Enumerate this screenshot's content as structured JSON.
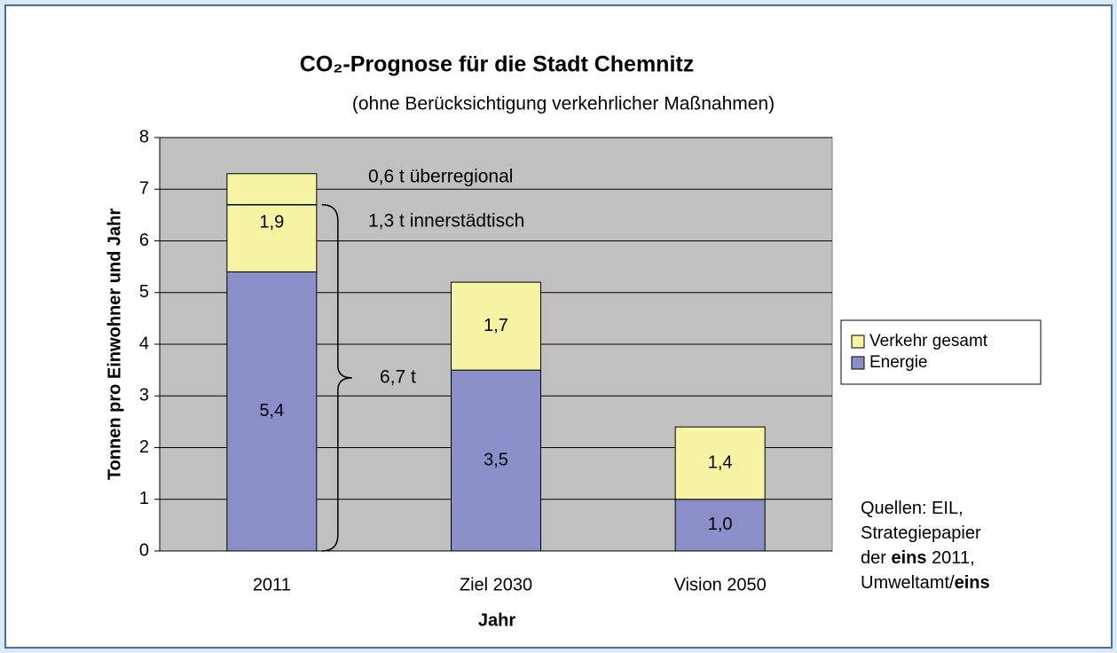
{
  "chart_data": {
    "type": "stacked_bar",
    "title": "CO₂-Prognose für die Stadt Chemnitz",
    "subtitle": "(ohne Berücksichtigung verkehrlicher Maßnahmen)",
    "x_label": "Jahr",
    "y_label": "Tonnen pro Einwohner und Jahr",
    "categories": [
      "2011",
      "Ziel 2030",
      "Vision 2050"
    ],
    "series": [
      {
        "name": "Energie",
        "color": "#8b8fc9",
        "values": [
          5.4,
          3.5,
          1.0
        ],
        "value_labels": [
          "5,4",
          "3,5",
          "1,0"
        ]
      },
      {
        "name": "Verkehr gesamt",
        "color": "#f5f5a3",
        "values": [
          1.9,
          1.7,
          1.4
        ],
        "value_labels": [
          "1,9",
          "1,7",
          "1,4"
        ]
      }
    ],
    "ylim": [
      0,
      8
    ],
    "yticks": [
      0,
      1,
      2,
      3,
      4,
      5,
      6,
      7,
      8
    ],
    "grid": true,
    "annotations": [
      {
        "text": "0,6 t überregional"
      },
      {
        "text": "1,3 t innerstädtisch"
      },
      {
        "text": "6,7 t",
        "value": 6.7
      }
    ],
    "source": [
      [
        {
          "text": "Quellen: EIL,"
        }
      ],
      [
        {
          "text": "Strategiepapier"
        }
      ],
      [
        {
          "text": "der "
        },
        {
          "text": "eins",
          "bold": true
        },
        {
          "text": " 2011,"
        }
      ],
      [
        {
          "text": "Umweltamt/"
        },
        {
          "text": "eins",
          "bold": true
        }
      ]
    ]
  }
}
